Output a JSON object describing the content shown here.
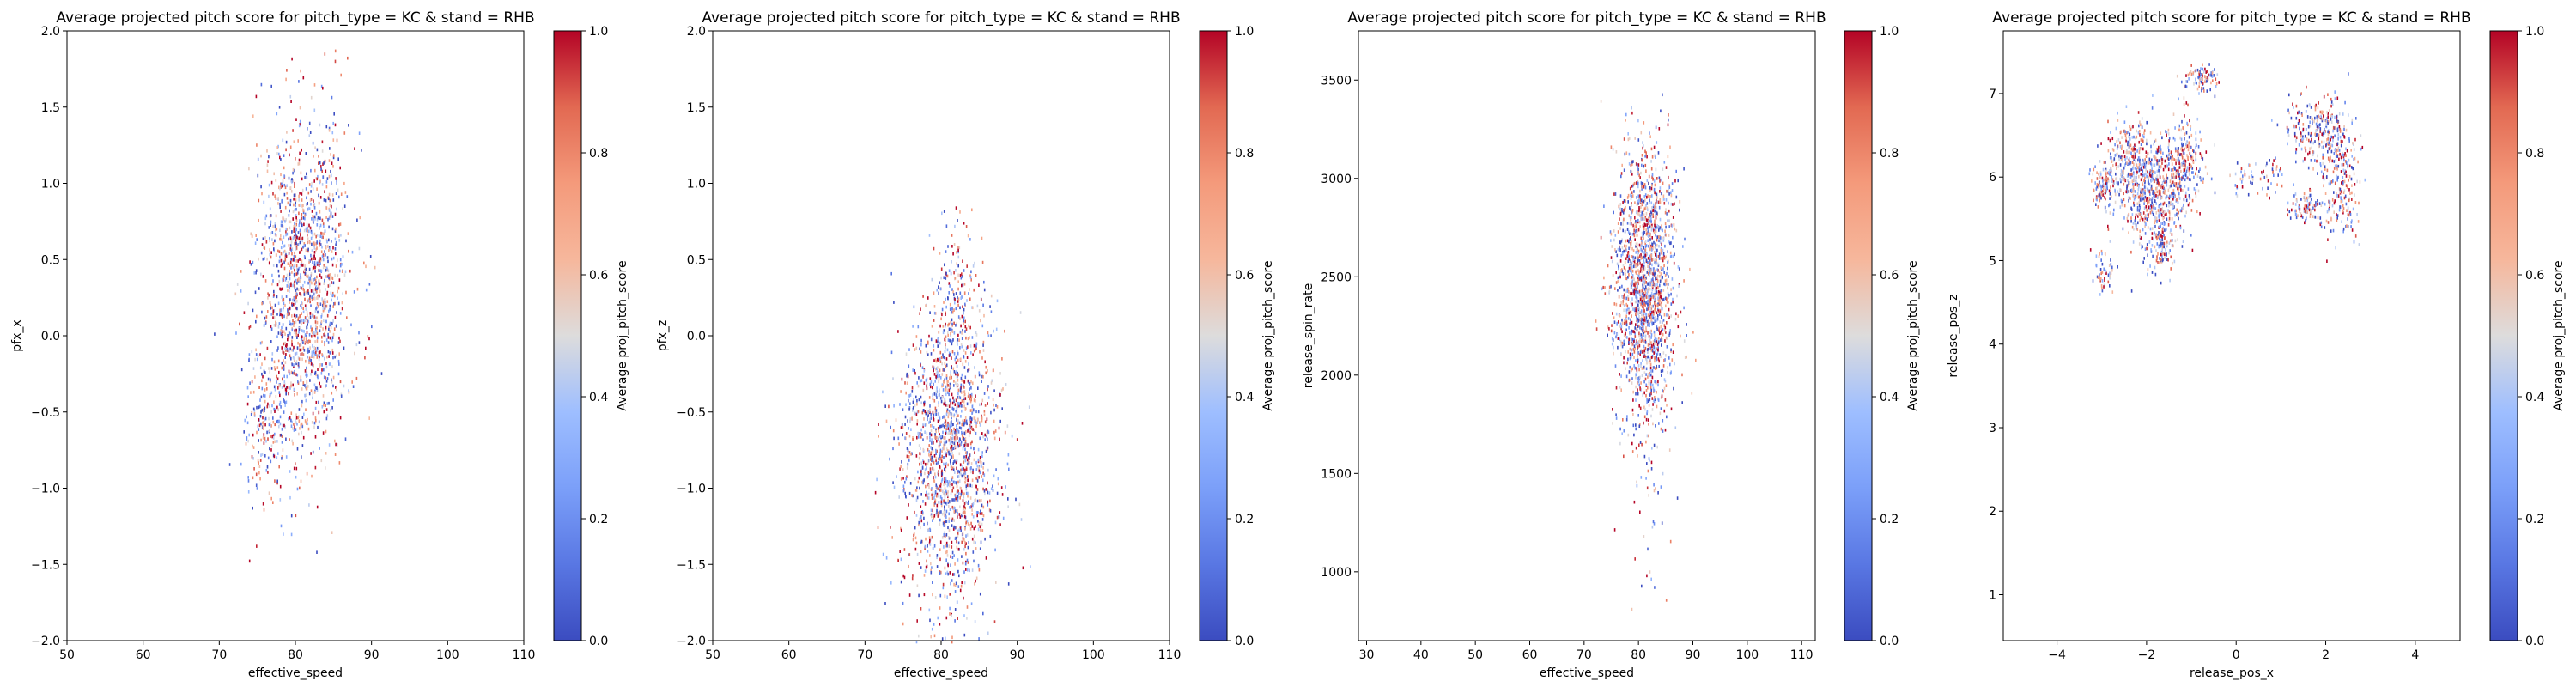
{
  "chart_data": [
    {
      "type": "heatmap",
      "title": "Average projected pitch score for pitch_type = KC & stand = RHB",
      "xlabel": "effective_speed",
      "ylabel": "pfx_x",
      "xlim": [
        50,
        110
      ],
      "ylim": [
        -2.0,
        2.0
      ],
      "xticks": [
        "50",
        "60",
        "70",
        "80",
        "90",
        "100",
        "110"
      ],
      "yticks": [
        "−2.0",
        "−1.5",
        "−1.0",
        "−0.5",
        "0.0",
        "0.5",
        "1.0",
        "1.5",
        "2.0"
      ],
      "colorbar": {
        "label": "Average proj_pitch_score",
        "range": [
          0.0,
          1.0
        ],
        "ticks": [
          "0.0",
          "0.2",
          "0.4",
          "0.6",
          "0.8",
          "1.0"
        ],
        "colormap": "coolwarm"
      },
      "clusters": [
        {
          "cx": 81,
          "cy": 0.3,
          "sx": 3.0,
          "sy": 0.55,
          "n": 1600,
          "tilt": 0.08
        },
        {
          "cx": 76,
          "cy": -0.55,
          "sx": 1.5,
          "sy": 0.22,
          "n": 160,
          "tilt": 0
        }
      ],
      "value_range": [
        -2.0,
        2.0
      ]
    },
    {
      "type": "heatmap",
      "title": "Average projected pitch score for pitch_type = KC & stand = RHB",
      "xlabel": "effective_speed",
      "ylabel": "pfx_z",
      "xlim": [
        50,
        110
      ],
      "ylim": [
        -2.0,
        2.0
      ],
      "xticks": [
        "50",
        "60",
        "70",
        "80",
        "90",
        "100",
        "110"
      ],
      "yticks": [
        "−2.0",
        "−1.5",
        "−1.0",
        "−0.5",
        "0.0",
        "0.5",
        "1.0",
        "1.5",
        "2.0"
      ],
      "colorbar": {
        "label": "Average proj_pitch_score",
        "range": [
          0.0,
          1.0
        ],
        "ticks": [
          "0.0",
          "0.2",
          "0.4",
          "0.6",
          "0.8",
          "1.0"
        ],
        "colormap": "coolwarm"
      },
      "clusters": [
        {
          "cx": 81,
          "cy": -0.75,
          "sx": 3.2,
          "sy": 0.5,
          "n": 1700,
          "tilt": 0.05
        },
        {
          "cx": 82,
          "cy": 0.3,
          "sx": 1.3,
          "sy": 0.25,
          "n": 120,
          "tilt": 0
        }
      ],
      "value_range": [
        -2.0,
        0.85
      ]
    },
    {
      "type": "heatmap",
      "title": "Average projected pitch score for pitch_type = KC & stand = RHB",
      "xlabel": "effective_speed",
      "ylabel": "release_spin_rate",
      "xlim": [
        28.5,
        112.5
      ],
      "ylim": [
        650,
        3750
      ],
      "xticks": [
        "30",
        "40",
        "50",
        "60",
        "70",
        "80",
        "90",
        "100",
        "110"
      ],
      "yticks": [
        "1000",
        "1500",
        "2000",
        "2500",
        "3000",
        "3500"
      ],
      "colorbar": {
        "label": "Average proj_pitch_score",
        "range": [
          0.0,
          1.0
        ],
        "ticks": [
          "0.0",
          "0.2",
          "0.4",
          "0.6",
          "0.8",
          "1.0"
        ],
        "colormap": "coolwarm"
      },
      "clusters": [
        {
          "cx": 81,
          "cy": 2480,
          "sx": 2.8,
          "sy": 340,
          "n": 1700,
          "tilt": 0
        },
        {
          "cx": 81,
          "cy": 1350,
          "sx": 2.5,
          "sy": 320,
          "n": 45,
          "tilt": 0
        }
      ],
      "value_range": [
        700,
        3600
      ]
    },
    {
      "type": "heatmap",
      "title": "Average projected pitch score for pitch_type = KC & stand = RHB",
      "xlabel": "release_pos_x",
      "ylabel": "release_pos_z",
      "xlim": [
        -5.2,
        5.0
      ],
      "ylim": [
        0.45,
        7.75
      ],
      "xticks": [
        "−4",
        "−2",
        "0",
        "2",
        "4"
      ],
      "yticks": [
        "1",
        "2",
        "3",
        "4",
        "5",
        "6",
        "7"
      ],
      "colorbar": {
        "label": "Average proj_pitch_score",
        "range": [
          0.0,
          1.0
        ],
        "ticks": [
          "0.0",
          "0.2",
          "0.4",
          "0.6",
          "0.8",
          "1.0"
        ],
        "colormap": "coolwarm"
      },
      "clusters": [
        {
          "cx": -1.8,
          "cy": 5.8,
          "sx": 0.35,
          "sy": 0.35,
          "n": 520,
          "tilt": 0
        },
        {
          "cx": -2.4,
          "cy": 6.2,
          "sx": 0.3,
          "sy": 0.25,
          "n": 260,
          "tilt": 0
        },
        {
          "cx": -1.2,
          "cy": 6.2,
          "sx": 0.25,
          "sy": 0.25,
          "n": 240,
          "tilt": 0
        },
        {
          "cx": -0.8,
          "cy": 7.2,
          "sx": 0.18,
          "sy": 0.08,
          "n": 90,
          "tilt": 0
        },
        {
          "cx": -3.0,
          "cy": 5.9,
          "sx": 0.18,
          "sy": 0.12,
          "n": 110,
          "tilt": 0
        },
        {
          "cx": -3.0,
          "cy": 4.85,
          "sx": 0.12,
          "sy": 0.15,
          "n": 55,
          "tilt": 0
        },
        {
          "cx": -1.7,
          "cy": 5.15,
          "sx": 0.15,
          "sy": 0.15,
          "n": 70,
          "tilt": 0
        },
        {
          "cx": 1.8,
          "cy": 6.6,
          "sx": 0.35,
          "sy": 0.2,
          "n": 220,
          "tilt": 0
        },
        {
          "cx": 2.3,
          "cy": 6.0,
          "sx": 0.22,
          "sy": 0.4,
          "n": 240,
          "tilt": 0
        },
        {
          "cx": 1.5,
          "cy": 5.65,
          "sx": 0.18,
          "sy": 0.1,
          "n": 90,
          "tilt": 0
        },
        {
          "cx": 0.1,
          "cy": 6.0,
          "sx": 0.15,
          "sy": 0.1,
          "n": 30,
          "tilt": 0
        },
        {
          "cx": 0.8,
          "cy": 6.05,
          "sx": 0.12,
          "sy": 0.1,
          "n": 30,
          "tilt": 0
        }
      ],
      "value_range": [
        4.6,
        7.45
      ]
    }
  ]
}
